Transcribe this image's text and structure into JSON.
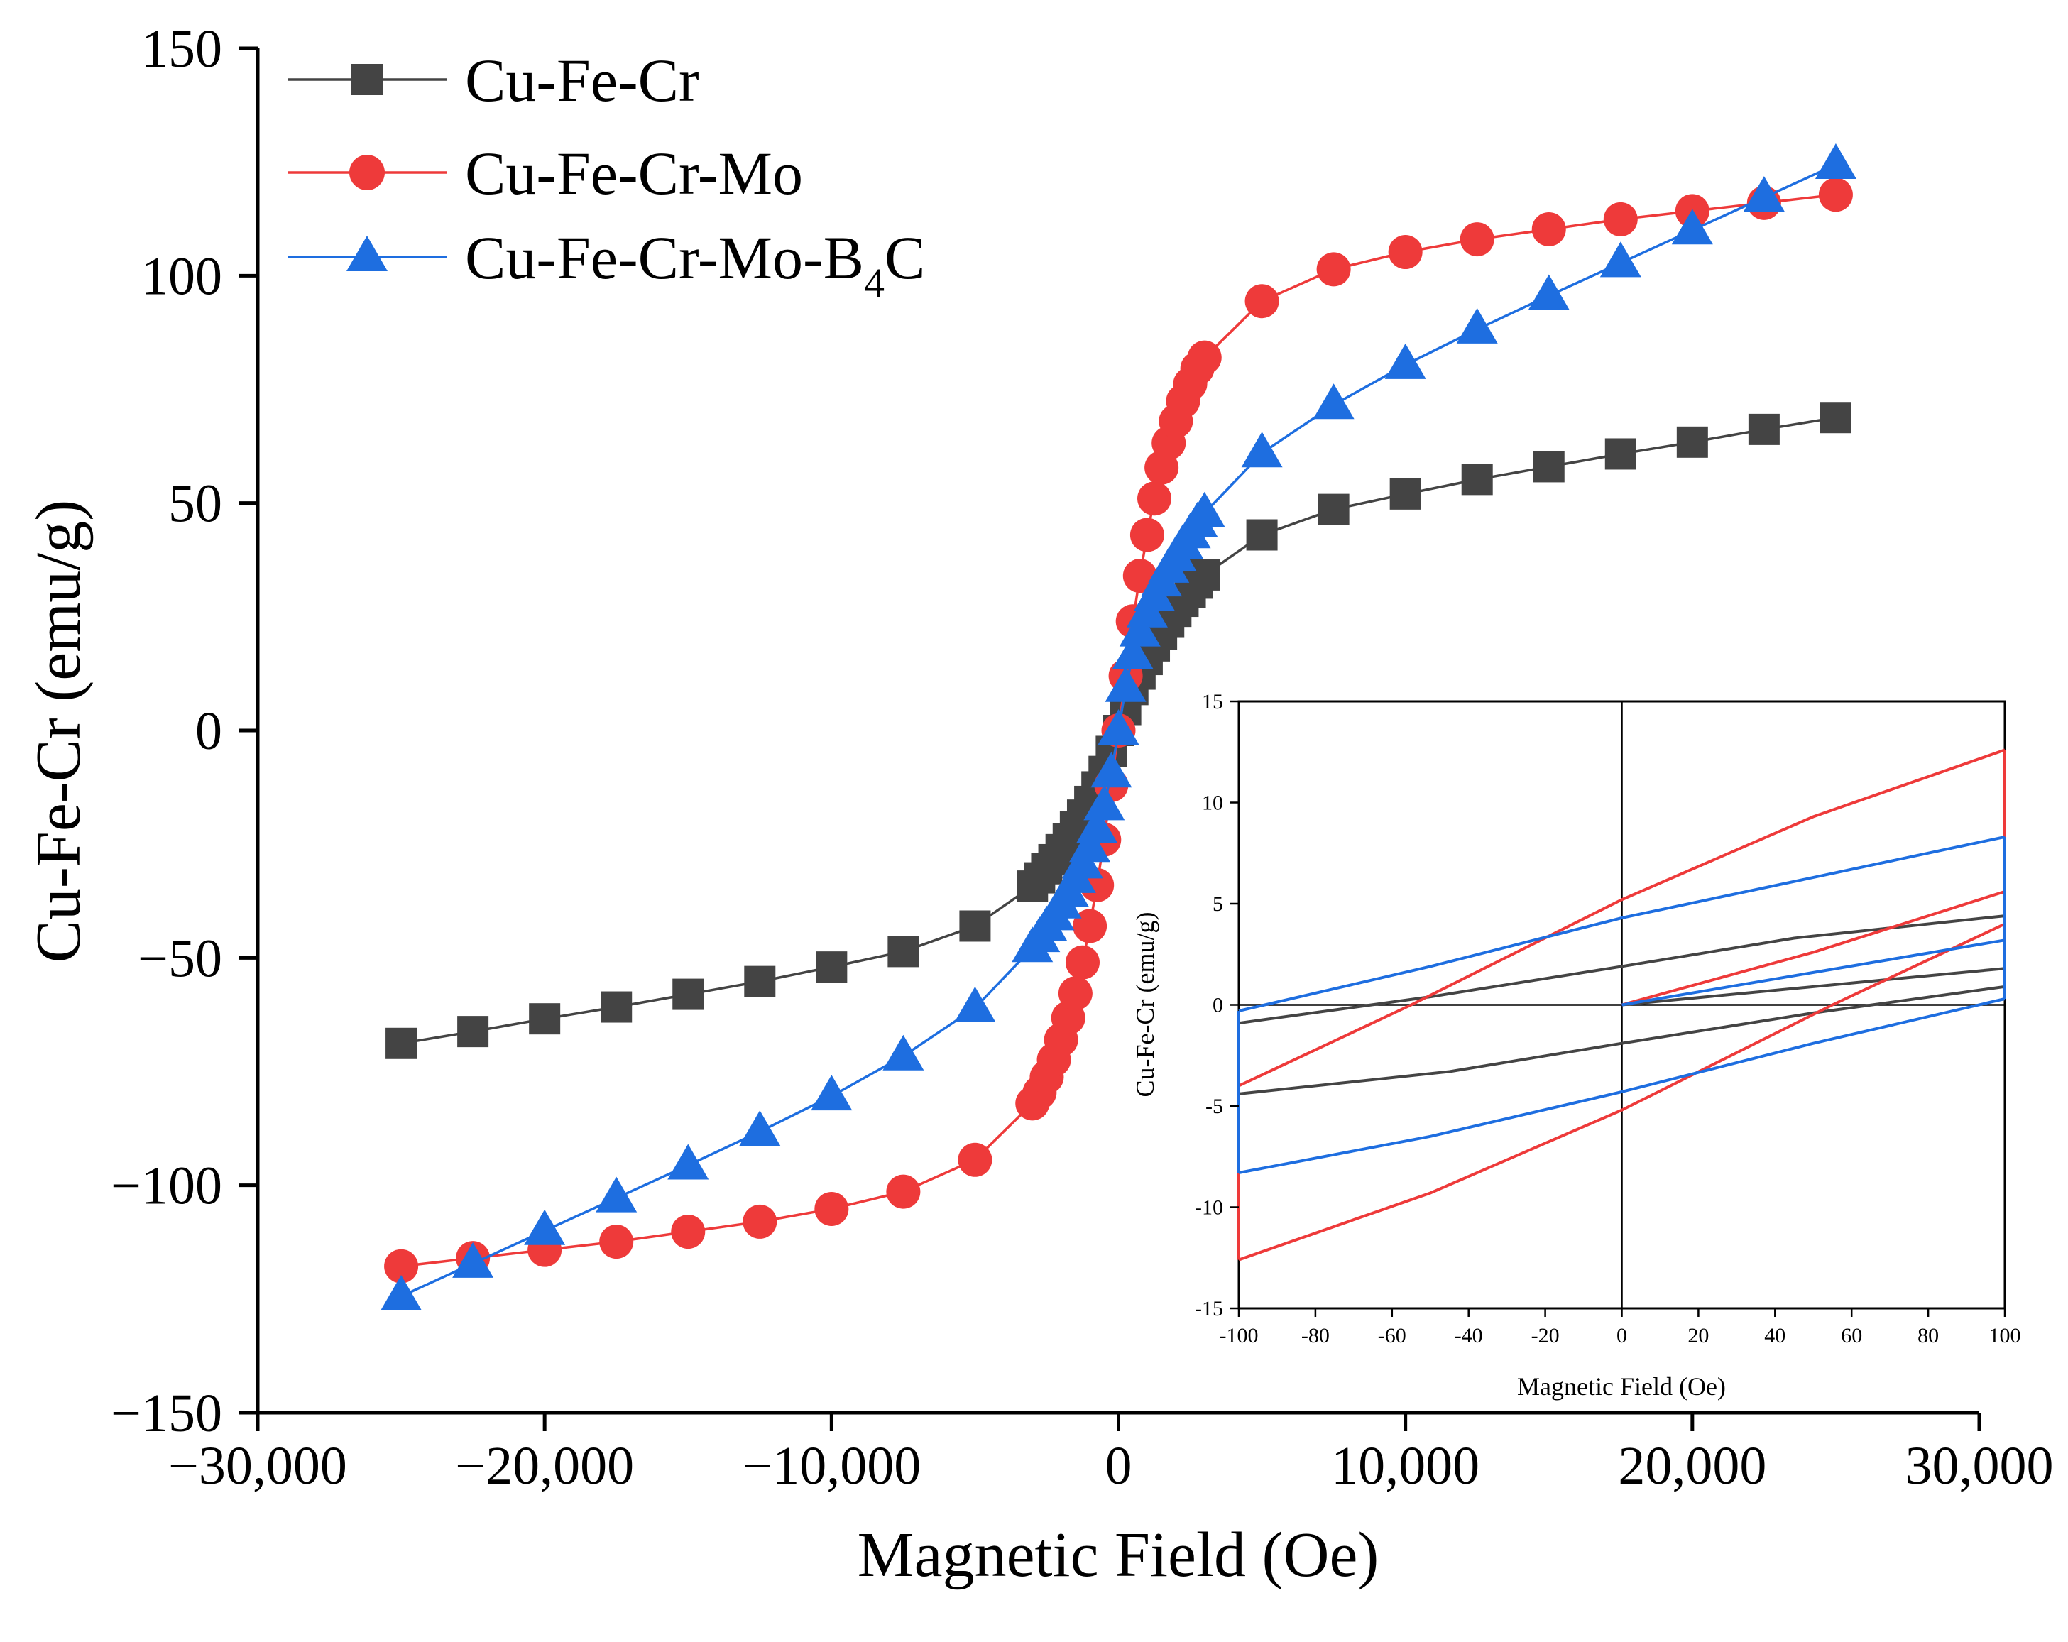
{
  "colors": {
    "Cu-Fe-Cr": "#444444",
    "Cu-Fe-Cr-Mo": "#EE3A3A",
    "Cu-Fe-Cr-Mo-B4C": "#1E6EE0"
  },
  "chart_data": [
    {
      "id": "main",
      "type": "line",
      "title": "",
      "xlabel": "Magnetic Field (Oe)",
      "ylabel": "Cu-Fe-Cr (emu/g)",
      "xlim": [
        -30000,
        30000
      ],
      "ylim": [
        -150,
        150
      ],
      "xticks": [
        -30000,
        -20000,
        -10000,
        0,
        10000,
        20000,
        30000
      ],
      "xtick_labels": [
        "−30,000",
        "−20,000",
        "−10,000",
        "0",
        "10,000",
        "20,000",
        "30,000"
      ],
      "yticks": [
        -150,
        -100,
        -50,
        0,
        50,
        100,
        150
      ],
      "ytick_labels": [
        "−150",
        "−100",
        "−50",
        "0",
        "50",
        "100",
        "150"
      ],
      "legend_position": "top-left",
      "series": [
        {
          "name": "Cu-Fe-Cr",
          "legend_label": "Cu-Fe-Cr",
          "marker": "square",
          "x": [
            -25000,
            -22500,
            -20000,
            -17500,
            -15000,
            -12500,
            -10000,
            -7500,
            -5000,
            -3000,
            -2750,
            -2500,
            -2250,
            -2000,
            -1750,
            -1500,
            -1250,
            -1000,
            -750,
            -500,
            -250,
            0,
            250,
            500,
            750,
            1000,
            1250,
            1500,
            1750,
            2000,
            2250,
            2500,
            2750,
            3000,
            5000,
            7500,
            10000,
            12500,
            15000,
            17500,
            20000,
            22500,
            25000
          ],
          "y": [
            -68.8,
            -66.2,
            -63.4,
            -60.8,
            -58.0,
            -55.2,
            -52.0,
            -48.6,
            -43.0,
            -34.2,
            -32.4,
            -30.4,
            -28.4,
            -26.2,
            -23.8,
            -21.2,
            -18.6,
            -15.6,
            -12.4,
            -9.0,
            -4.6,
            0,
            4.6,
            9.0,
            12.4,
            15.6,
            18.6,
            21.2,
            23.8,
            26.2,
            28.4,
            30.4,
            32.4,
            34.2,
            43.0,
            48.6,
            52.0,
            55.2,
            58.0,
            60.8,
            63.4,
            66.2,
            68.8
          ]
        },
        {
          "name": "Cu-Fe-Cr-Mo",
          "legend_label": "Cu-Fe-Cr-Mo",
          "marker": "circle",
          "x": [
            -25000,
            -22500,
            -20000,
            -17500,
            -15000,
            -12500,
            -10000,
            -7500,
            -5000,
            -3000,
            -2750,
            -2500,
            -2250,
            -2000,
            -1750,
            -1500,
            -1250,
            -1000,
            -750,
            -500,
            -250,
            0,
            250,
            500,
            750,
            1000,
            1250,
            1500,
            1750,
            2000,
            2250,
            2500,
            2750,
            3000,
            5000,
            7500,
            10000,
            12500,
            15000,
            17500,
            20000,
            22500,
            25000
          ],
          "y": [
            -117.8,
            -116.0,
            -114.2,
            -112.4,
            -110.2,
            -108.0,
            -105.2,
            -101.4,
            -94.4,
            -82.0,
            -79.6,
            -76.2,
            -72.4,
            -68.0,
            -63.2,
            -57.8,
            -51.0,
            -43.0,
            -34.0,
            -24.0,
            -12.0,
            0,
            12.0,
            24.0,
            34.0,
            43.0,
            51.0,
            57.8,
            63.2,
            68.0,
            72.4,
            76.2,
            79.6,
            82.0,
            94.4,
            101.4,
            105.2,
            108.0,
            110.2,
            112.4,
            114.2,
            116.0,
            117.8
          ]
        },
        {
          "name": "Cu-Fe-Cr-Mo-B4C",
          "legend_label": "Cu-Fe-Cr-Mo-B",
          "legend_subscript": "4",
          "legend_suffix": "C",
          "marker": "triangle",
          "x": [
            -25000,
            -22500,
            -20000,
            -17500,
            -15000,
            -12500,
            -10000,
            -7500,
            -5000,
            -3000,
            -2750,
            -2500,
            -2250,
            -2000,
            -1750,
            -1500,
            -1250,
            -1000,
            -750,
            -500,
            -250,
            0,
            250,
            500,
            750,
            1000,
            1250,
            1500,
            1750,
            2000,
            2250,
            2500,
            2750,
            3000,
            5000,
            7500,
            10000,
            12500,
            15000,
            17500,
            20000,
            22500,
            25000
          ],
          "y": [
            -124.4,
            -117.2,
            -110.0,
            -102.8,
            -95.6,
            -88.2,
            -80.4,
            -71.6,
            -61.0,
            -47.8,
            -45.6,
            -43.2,
            -40.8,
            -38.2,
            -35.6,
            -32.6,
            -29.4,
            -25.8,
            -21.6,
            -16.6,
            -9.4,
            0,
            9.4,
            16.6,
            21.6,
            25.8,
            29.4,
            32.6,
            35.6,
            38.2,
            40.8,
            43.2,
            45.6,
            47.8,
            61.0,
            71.6,
            80.4,
            88.2,
            95.6,
            102.8,
            110.0,
            117.2,
            124.4
          ]
        }
      ]
    },
    {
      "id": "inset",
      "type": "line",
      "title": "",
      "xlabel": "Magnetic Field (Oe)",
      "ylabel": "Cu-Fe-Cr (emu/g)",
      "xlim": [
        -100,
        100
      ],
      "ylim": [
        -15,
        15
      ],
      "xticks": [
        -100,
        -80,
        -60,
        -40,
        -20,
        0,
        20,
        40,
        60,
        80,
        100
      ],
      "xtick_labels": [
        "-100",
        "-80",
        "-60",
        "-40",
        "-20",
        "0",
        "20",
        "40",
        "60",
        "80",
        "100"
      ],
      "yticks": [
        -15,
        -10,
        -5,
        0,
        5,
        10,
        15
      ],
      "ytick_labels": [
        "-15",
        "-10",
        "-5",
        "0",
        "5",
        "10",
        "15"
      ],
      "zero_lines": true,
      "series": [
        {
          "name": "Cu-Fe-Cr",
          "segments": [
            {
              "x": [
                0,
                100
              ],
              "y": [
                0,
                1.8
              ]
            },
            {
              "x": [
                100,
                45,
                0,
                -50,
                -100
              ],
              "y": [
                4.4,
                3.3,
                1.9,
                0.4,
                -0.9
              ]
            },
            {
              "x": [
                -100,
                -45,
                0,
                50,
                100
              ],
              "y": [
                -4.4,
                -3.3,
                -1.9,
                -0.4,
                0.9
              ]
            }
          ]
        },
        {
          "name": "Cu-Fe-Cr-Mo",
          "segments": [
            {
              "x": [
                0,
                50,
                100
              ],
              "y": [
                0,
                2.6,
                5.6
              ]
            },
            {
              "x": [
                100,
                50,
                0,
                -55,
                -100
              ],
              "y": [
                12.6,
                9.3,
                5.2,
                0,
                -4.0
              ]
            },
            {
              "x": [
                -100,
                -50,
                0,
                55,
                100
              ],
              "y": [
                -12.6,
                -9.3,
                -5.2,
                0,
                4.0
              ]
            },
            {
              "x": [
                100,
                100
              ],
              "y": [
                4.0,
                12.6
              ]
            },
            {
              "x": [
                -100,
                -100
              ],
              "y": [
                -4.0,
                -12.6
              ]
            }
          ]
        },
        {
          "name": "Cu-Fe-Cr-Mo-B4C",
          "segments": [
            {
              "x": [
                0,
                100
              ],
              "y": [
                0,
                3.2
              ]
            },
            {
              "x": [
                100,
                55,
                0,
                -50,
                -100
              ],
              "y": [
                8.3,
                6.5,
                4.3,
                1.9,
                -0.3
              ]
            },
            {
              "x": [
                -100,
                -50,
                0,
                50,
                100
              ],
              "y": [
                -8.3,
                -6.5,
                -4.3,
                -1.9,
                0.3
              ]
            },
            {
              "x": [
                100,
                100
              ],
              "y": [
                0.3,
                8.3
              ]
            },
            {
              "x": [
                -100,
                -100
              ],
              "y": [
                -0.3,
                -8.3
              ]
            }
          ]
        }
      ]
    }
  ]
}
